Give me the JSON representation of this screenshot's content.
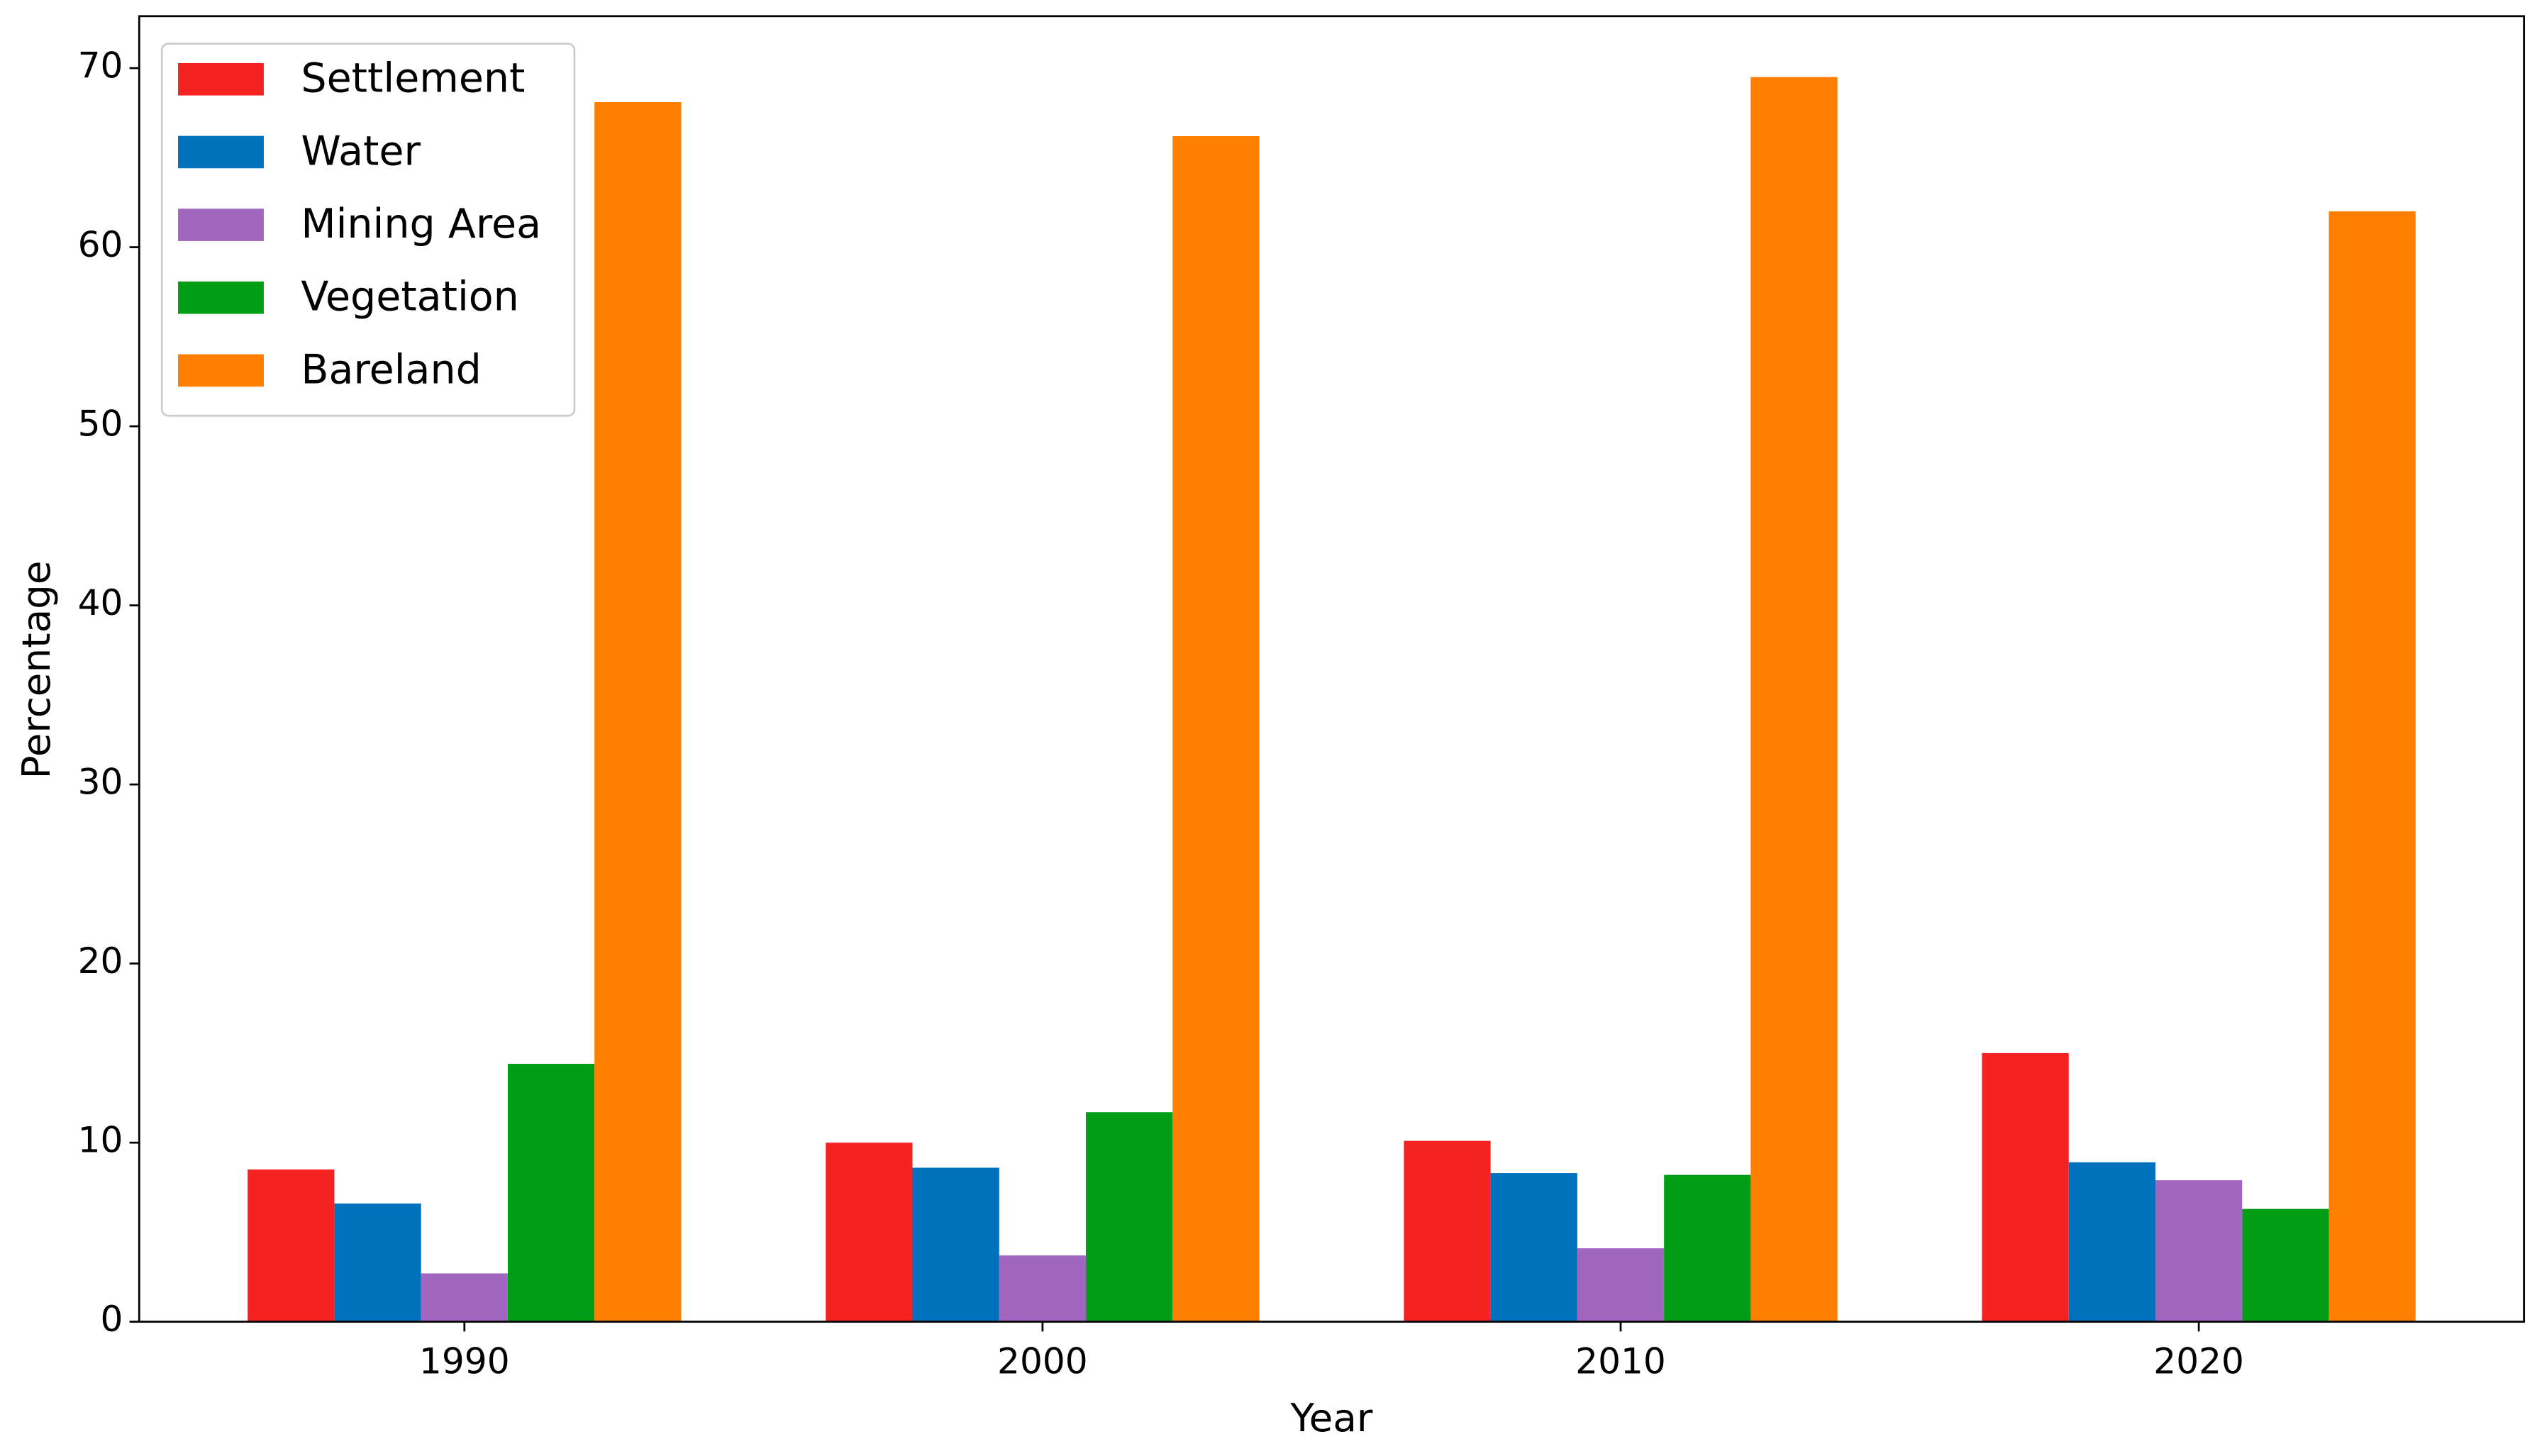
{
  "chart_data": {
    "type": "bar",
    "x_label": "Year",
    "y_label": "Percentage",
    "categories": [
      "1990",
      "2000",
      "2010",
      "2020"
    ],
    "series": [
      {
        "name": "Settlement",
        "color": "#f52222",
        "values": [
          8.5,
          10.0,
          10.1,
          15.0
        ]
      },
      {
        "name": "Water",
        "color": "#0072bd",
        "values": [
          6.6,
          8.6,
          8.3,
          8.9
        ]
      },
      {
        "name": "Mining Area",
        "color": "#a066c0",
        "values": [
          2.7,
          3.7,
          4.1,
          7.9
        ]
      },
      {
        "name": "Vegetation",
        "color": "#009e17",
        "values": [
          14.4,
          11.7,
          8.2,
          6.3
        ]
      },
      {
        "name": "Bareland",
        "color": "#ff8000",
        "values": [
          68.1,
          66.2,
          69.5,
          62.0
        ]
      }
    ],
    "ylim": [
      0,
      72.9
    ],
    "yticks": [
      0,
      10,
      20,
      30,
      40,
      50,
      60,
      70
    ],
    "legend": "upper left",
    "grid": false
  }
}
